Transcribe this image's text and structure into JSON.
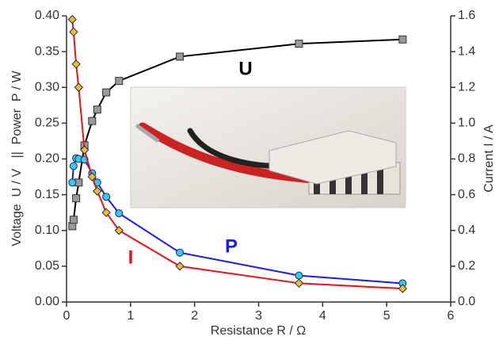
{
  "chart_data": {
    "type": "line",
    "x_label": "Resistance R / Ω",
    "y_label": "Voltage  U / V   ||  Power  P / W",
    "y2_label": "Current I / A",
    "x": [
      0.09,
      0.11,
      0.15,
      0.19,
      0.28,
      0.4,
      0.48,
      0.62,
      0.82,
      1.77,
      3.63,
      5.25
    ],
    "series": [
      {
        "name": "U",
        "color": "#000000",
        "marker": "square",
        "marker_color": "#999999",
        "values": [
          0.106,
          0.115,
          0.145,
          0.167,
          0.219,
          0.253,
          0.269,
          0.293,
          0.309,
          0.343,
          0.361,
          0.367
        ]
      },
      {
        "name": "P",
        "color": "#1a1aff",
        "marker": "circle",
        "marker_color": "#33ccee",
        "values": [
          0.167,
          0.19,
          0.201,
          0.2,
          0.199,
          0.18,
          0.167,
          0.147,
          0.124,
          0.069,
          0.037,
          0.026
        ]
      },
      {
        "name": "I",
        "color": "#ee1111",
        "marker": "diamond",
        "marker_color": "#f0c020",
        "axis": "y2",
        "values": [
          1.58,
          1.51,
          1.33,
          1.2,
          0.85,
          0.7,
          0.62,
          0.5,
          0.4,
          0.2,
          0.105,
          0.075
        ]
      }
    ],
    "xlim": [
      0,
      6
    ],
    "xticks": [
      0,
      1,
      2,
      3,
      4,
      5,
      6
    ],
    "ylim": [
      0,
      0.4
    ],
    "yticks": [
      {
        "value": 0,
        "label": "0.00"
      },
      {
        "value": 0.05,
        "label": "0.05"
      },
      {
        "value": 0.1,
        "label": "0.10"
      },
      {
        "value": 0.15,
        "label": "0.15"
      },
      {
        "value": 0.2,
        "label": "0.20"
      },
      {
        "value": 0.25,
        "label": "0.25"
      },
      {
        "value": 0.3,
        "label": "0.30"
      },
      {
        "value": 0.35,
        "label": "0.35"
      },
      {
        "value": 0.4,
        "label": "0.40"
      }
    ],
    "y2lim": [
      0,
      1.6
    ],
    "y2ticks": [
      {
        "value": 0,
        "label": "0.0"
      },
      {
        "value": 0.2,
        "label": "0.2"
      },
      {
        "value": 0.4,
        "label": "0.4"
      },
      {
        "value": 0.6,
        "label": "0.6"
      },
      {
        "value": 0.8,
        "label": "0.8"
      },
      {
        "value": 1.0,
        "label": "1.0"
      },
      {
        "value": 1.2,
        "label": "1.2"
      },
      {
        "value": 1.4,
        "label": "1.4"
      },
      {
        "value": 1.6,
        "label": "1.6"
      }
    ],
    "grid": false
  }
}
